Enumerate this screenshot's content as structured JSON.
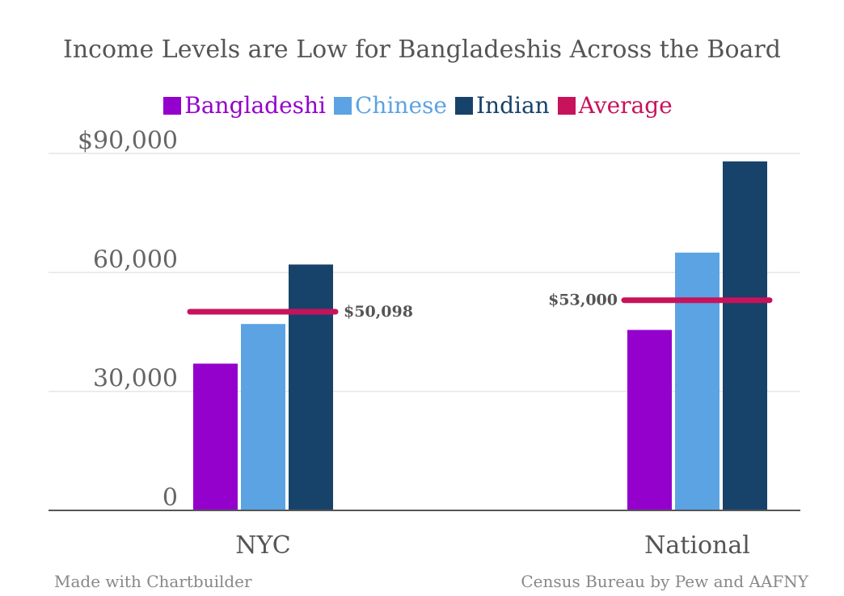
{
  "chart_data": {
    "type": "bar",
    "title": "Income Levels are Low for Bangladeshis Across the Board",
    "categories": [
      "NYC",
      "National"
    ],
    "series": [
      {
        "name": "Bangladeshi",
        "color": "#9400cc",
        "values": [
          37000,
          45500
        ]
      },
      {
        "name": "Chinese",
        "color": "#5ba3e3",
        "values": [
          47000,
          65000
        ]
      },
      {
        "name": "Indian",
        "color": "#17436b",
        "values": [
          62000,
          88000
        ]
      }
    ],
    "average": {
      "name": "Average",
      "color": "#c7135b",
      "values": [
        50098,
        53000
      ],
      "labels": [
        "$50,098",
        "$53,000"
      ]
    },
    "ylim": [
      0,
      90000
    ],
    "yticks": [
      0,
      30000,
      60000,
      90000
    ],
    "ytick_labels": [
      "0",
      "30,000",
      "60,000",
      "$90,000"
    ],
    "grid": true,
    "legend_position": "top",
    "xlabel": "",
    "ylabel": ""
  },
  "footer": {
    "left": "Made with Chartbuilder",
    "right": "Census Bureau by Pew and AAFNY"
  }
}
